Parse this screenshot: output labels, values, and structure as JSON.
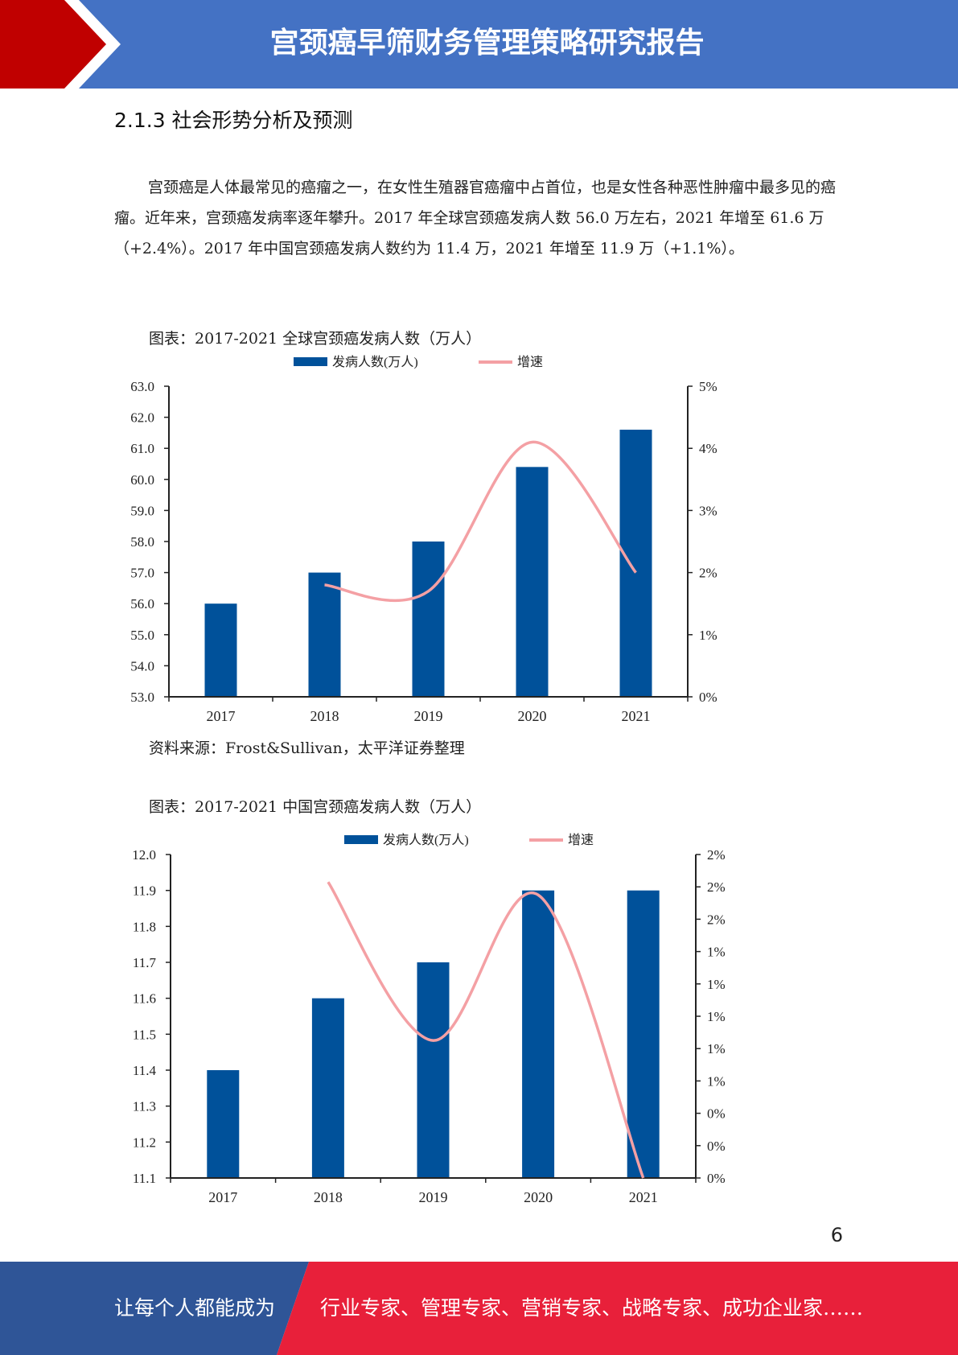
{
  "header": {
    "title": "宫颈癌早筛财务管理策略研究报告"
  },
  "section": {
    "title": "2.1.3 社会形势分析及预测"
  },
  "paragraph": "宫颈癌是人体最常见的癌瘤之一，在女性生殖器官癌瘤中占首位，也是女性各种恶性肿瘤中最多见的癌瘤。近年来，宫颈癌发病率逐年攀升。2017 年全球宫颈癌发病人数 56.0 万左右，2021 年增至 61.6 万（+2.4%）。2017 年中国宫颈癌发病人数约为 11.4 万，2021 年增至 11.9 万（+1.1%）。",
  "figure1": {
    "caption": "图表：2017-2021 全球宫颈癌发病人数（万人）",
    "source": "资料来源：Frost&Sullivan，太平洋证券整理"
  },
  "figure2": {
    "caption": "图表：2017-2021 中国宫颈癌发病人数（万人）"
  },
  "page_number": "6",
  "footer": {
    "left": "让每个人都能成为",
    "right": "行业专家、管理专家、营销专家、战略专家、成功企业家……"
  },
  "colors": {
    "header_blue": "#4472c4",
    "header_red": "#c00000",
    "bar": "#00519a",
    "line": "#f4a0a4",
    "footer_blue": "#2f5597",
    "footer_red": "#e8203a"
  },
  "chart_data": [
    {
      "type": "bar",
      "categories": [
        "2017",
        "2018",
        "2019",
        "2020",
        "2021"
      ],
      "series": [
        {
          "name": "发病人数(万人)",
          "type": "bar",
          "axis": "left",
          "values": [
            56.0,
            57.0,
            58.0,
            60.4,
            61.6
          ]
        },
        {
          "name": "增速",
          "type": "line",
          "axis": "right",
          "values": [
            null,
            1.8,
            1.7,
            4.1,
            2.0
          ]
        }
      ],
      "yticks": [
        "53.0",
        "54.0",
        "55.0",
        "56.0",
        "57.0",
        "58.0",
        "59.0",
        "60.0",
        "61.0",
        "62.0",
        "63.0"
      ],
      "ylim": [
        53.0,
        63.0
      ],
      "y2ticks": [
        "0%",
        "1%",
        "2%",
        "3%",
        "4%",
        "5%"
      ],
      "y2lim": [
        0,
        5
      ],
      "legend": "top-center"
    },
    {
      "type": "bar",
      "categories": [
        "2017",
        "2018",
        "2019",
        "2020",
        "2021"
      ],
      "series": [
        {
          "name": "发病人数(万人)",
          "type": "bar",
          "axis": "left",
          "values": [
            11.4,
            11.6,
            11.7,
            11.9,
            11.9
          ]
        },
        {
          "name": "增速",
          "type": "line",
          "axis": "right",
          "values": [
            null,
            1.83,
            0.85,
            1.75,
            0.0
          ]
        }
      ],
      "yticks": [
        "11.1",
        "11.2",
        "11.3",
        "11.4",
        "11.5",
        "11.6",
        "11.7",
        "11.8",
        "11.9",
        "12.0"
      ],
      "ylim": [
        11.1,
        12.0
      ],
      "y2ticks": [
        "0%",
        "0%",
        "0%",
        "1%",
        "1%",
        "1%",
        "1%",
        "1%",
        "2%",
        "2%",
        "2%"
      ],
      "y2lim": [
        0,
        2
      ],
      "legend": "top-center"
    }
  ]
}
